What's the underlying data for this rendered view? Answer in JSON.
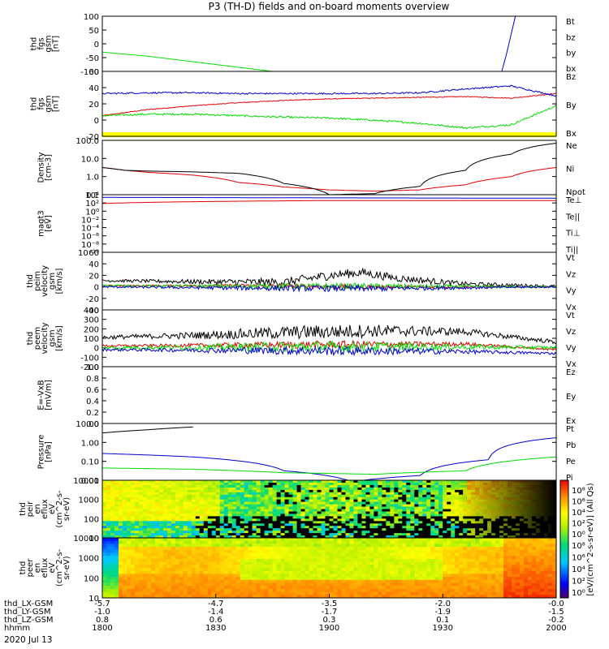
{
  "title": "P3 (TH-D) fields and on-board moments overview",
  "colors": {
    "black": "#000000",
    "red": "#e00000",
    "green": "#00dd00",
    "blue": "#0000cc",
    "yellow": "#ffff00"
  },
  "panels": [
    {
      "ylabel": [
        "thd",
        "fgs",
        "gsm",
        "[nT]"
      ],
      "ticks": [
        "100",
        "50",
        "0",
        "-50",
        "-100"
      ],
      "legend": [
        {
          "text": "Bt",
          "color": "#000000"
        },
        {
          "text": "bz",
          "color": "#e00000"
        },
        {
          "text": "by",
          "color": "#00bb00"
        },
        {
          "text": "bx",
          "color": "#0000cc"
        }
      ]
    },
    {
      "ylabel": [
        "thd",
        "fgs",
        "gsm",
        "[nT]"
      ],
      "ticks": [
        "60",
        "40",
        "20",
        "0",
        "-20"
      ],
      "legend": [
        {
          "text": "Bz",
          "color": "#e00000"
        },
        {
          "text": "By",
          "color": "#00bb00"
        },
        {
          "text": "Bx",
          "color": "#000000"
        }
      ]
    },
    {
      "ylabel": [
        "Density",
        "[cm-3]"
      ],
      "ticks": [
        "100.0",
        "10.0",
        "1.0",
        "0.1"
      ],
      "legend": [
        {
          "text": "Ne",
          "color": "#e00000"
        },
        {
          "text": "Ni",
          "color": "#000000"
        },
        {
          "text": "Npot",
          "color": "#0000cc"
        }
      ]
    },
    {
      "ylabel": [
        "magt3",
        "[eV]"
      ],
      "ticks": [
        "10⁴",
        "10²",
        "10⁰",
        "10⁻²",
        "10⁻⁴",
        "10⁻⁶",
        "10⁻⁸",
        "10⁻¹⁰"
      ],
      "legend": [
        {
          "text": "Te⊥",
          "color": "#e00000"
        },
        {
          "text": "Te||",
          "color": "#000000"
        },
        {
          "text": "Ti⊥",
          "color": "#0000cc"
        },
        {
          "text": "Ti||",
          "color": "#00bb00"
        }
      ]
    },
    {
      "ylabel": [
        "thd",
        "peim",
        "velocity",
        "gsm",
        "[km/s]"
      ],
      "ticks": [
        "60",
        "40",
        "20",
        "0",
        "-20",
        "-40"
      ],
      "legend": [
        {
          "text": "Vt",
          "color": "#000000"
        },
        {
          "text": "Vz",
          "color": "#e00000"
        },
        {
          "text": "Vy",
          "color": "#00bb00"
        },
        {
          "text": "Vx",
          "color": "#0000cc"
        }
      ]
    },
    {
      "ylabel": [
        "thd",
        "peem",
        "velocity",
        "gsm",
        "[km/s]"
      ],
      "ticks": [
        "400",
        "300",
        "200",
        "100",
        "0",
        "-100",
        "-200"
      ],
      "legend": [
        {
          "text": "Vt",
          "color": "#000000"
        },
        {
          "text": "Vz",
          "color": "#e00000"
        },
        {
          "text": "Vy",
          "color": "#00bb00"
        },
        {
          "text": "Vx",
          "color": "#0000cc"
        }
      ]
    },
    {
      "ylabel": [
        "E=-VxB",
        "[mV/m]"
      ],
      "ticks": [
        "1.0",
        "0.8",
        "0.6",
        "0.4",
        "0.2",
        "0.0"
      ],
      "legend": [
        {
          "text": "Ez",
          "color": "#e00000"
        },
        {
          "text": "Ey",
          "color": "#00bb00"
        },
        {
          "text": "Ex",
          "color": "#0000cc"
        }
      ]
    },
    {
      "ylabel": [
        "Pressure",
        "[nPa]"
      ],
      "ticks": [
        "10.00",
        "1.00",
        "0.10",
        "0.01"
      ],
      "legend": [
        {
          "text": "Pt",
          "color": "#000000"
        },
        {
          "text": "Pb",
          "color": "#e00000"
        },
        {
          "text": "Pe",
          "color": "#00bb00"
        },
        {
          "text": "Pi",
          "color": "#0000cc"
        }
      ]
    },
    {
      "ylabel": [
        "thd",
        "peir",
        "en",
        "eflux",
        "eV",
        "(cm^2-s-",
        "sr-eV)"
      ],
      "ticks": [
        "10000",
        "1000",
        "100",
        "10"
      ],
      "legend": []
    },
    {
      "ylabel": [
        "thd",
        "peer",
        "en",
        "eflux",
        "eV",
        "(cm^2-s-",
        "sr-eV)"
      ],
      "ticks": [
        "10000",
        "1000",
        "100",
        "10"
      ],
      "legend": []
    }
  ],
  "colorbar": {
    "label": "[eV/(cm^2-s-sr-eV)] (All Qs)",
    "upper_ticks": [
      "10⁸",
      "10⁶",
      "10⁴",
      "10²",
      "10⁰"
    ],
    "lower_ticks": [
      "10⁸",
      "10⁶",
      "10⁴",
      "10²",
      "10⁰"
    ]
  },
  "xaxis": {
    "rows": [
      {
        "label": "thd_LX-GSM",
        "values": [
          "-5.7",
          "-4.7",
          "-3.5",
          "-2.0",
          "-0.0"
        ]
      },
      {
        "label": "thd_LY-GSM",
        "values": [
          "-1.0",
          "-1.4",
          "-1.7",
          "-1.9",
          "-1.5"
        ]
      },
      {
        "label": "thd_LZ-GSM",
        "values": [
          "0.8",
          "0.6",
          "0.3",
          "0.1",
          "-0.2"
        ]
      },
      {
        "label": "hhmm",
        "values": [
          "1800",
          "1830",
          "1900",
          "1930",
          "2000"
        ]
      }
    ],
    "date": "2020 Jul 13"
  },
  "chart_data": {
    "type": "line",
    "title": "P3 (TH-D) fields and on-board moments overview",
    "x_hhmm": [
      "1800",
      "1830",
      "1900",
      "1930",
      "2000"
    ],
    "panels": [
      {
        "ylabel": "thd fgs gsm [nT]",
        "ylim": [
          -100,
          100
        ],
        "series": [
          {
            "name": "by",
            "x": [
              0,
              10,
              20,
              30,
              40
            ],
            "y": [
              -30,
              -45,
              -65,
              -85,
              -105
            ]
          },
          {
            "name": "bx",
            "x": [
              88,
              89,
              90,
              91
            ],
            "y": [
              -100,
              -40,
              30,
              100
            ]
          }
        ]
      },
      {
        "ylabel": "thd fgs gsm [nT]",
        "ylim": [
          -25,
          60
        ],
        "series": [
          {
            "name": "Bz",
            "x": [
              0,
              10,
              20,
              30,
              40,
              50,
              60,
              70,
              80,
              90,
              100
            ],
            "y": [
              2,
              10,
              15,
              19,
              22,
              24,
              25,
              26,
              27,
              25,
              31
            ]
          },
          {
            "name": "By",
            "x": [
              0,
              10,
              20,
              30,
              40,
              50,
              60,
              70,
              80,
              90,
              100
            ],
            "y": [
              2,
              4,
              4,
              2,
              0,
              -1,
              -4,
              -8,
              -14,
              -10,
              15
            ]
          },
          {
            "name": "Bx",
            "x": [
              0,
              10,
              20,
              30,
              40,
              50,
              60,
              70,
              80,
              90,
              100
            ],
            "y": [
              31,
              32,
              32,
              31,
              31,
              31,
              31,
              32,
              37,
              41,
              28
            ]
          }
        ]
      },
      {
        "ylabel": "Density [cm-3]",
        "scale": "log",
        "ylim": [
          0.06,
          150
        ],
        "series": [
          {
            "name": "Ne",
            "x": [
              0,
              5,
              10,
              20,
              30,
              40,
              50,
              60,
              70,
              80,
              90,
              100
            ],
            "y": [
              3,
              2,
              1.5,
              1,
              0.35,
              0.18,
              0.12,
              0.1,
              0.12,
              0.25,
              0.8,
              3
            ]
          },
          {
            "name": "Ni",
            "x": [
              0,
              5,
              10,
              20,
              30,
              40,
              50,
              60,
              70,
              80,
              90,
              100
            ],
            "y": [
              3,
              2,
              1.8,
              1.6,
              1.3,
              0.3,
              0.06,
              0.07,
              0.2,
              2,
              20,
              100
            ]
          }
        ]
      },
      {
        "ylabel": "magt3 [eV]",
        "scale": "log",
        "series": [
          {
            "name": "Te⊥",
            "x": [
              0,
              50,
              100
            ],
            "y": [
              500,
              3000,
              3000
            ]
          },
          {
            "name": "Ti⊥",
            "x": [
              0,
              50,
              100
            ],
            "y": [
              20000,
              15000,
              12000
            ]
          }
        ]
      },
      {
        "ylabel": "thd peim velocity gsm [km/s]",
        "ylim": [
          -40,
          60
        ],
        "series": [
          {
            "name": "Vt",
            "x": [
              0,
              20,
              40,
              50,
              57,
              65,
              80,
              100
            ],
            "y": [
              11,
              9,
              8,
              20,
              25,
              15,
              5,
              1
            ]
          },
          {
            "name": "Vz",
            "x": [
              0,
              30,
              60,
              100
            ],
            "y": [
              2,
              2,
              0,
              0
            ]
          },
          {
            "name": "Vy",
            "x": [
              0,
              30,
              60,
              100
            ],
            "y": [
              2,
              1,
              1,
              0
            ]
          },
          {
            "name": "Vx",
            "x": [
              0,
              30,
              60,
              100
            ],
            "y": [
              0,
              -2,
              -3,
              0
            ]
          }
        ]
      },
      {
        "ylabel": "thd peem velocity gsm [km/s]",
        "ylim": [
          -200,
          400
        ],
        "series": [
          {
            "name": "Vt",
            "x": [
              0,
              20,
              40,
              60,
              80,
              100
            ],
            "y": [
              110,
              130,
              160,
              180,
              170,
              60
            ]
          },
          {
            "name": "Vz",
            "x": [
              0,
              40,
              80,
              100
            ],
            "y": [
              20,
              30,
              40,
              -20
            ]
          },
          {
            "name": "Vy",
            "x": [
              0,
              40,
              80,
              100
            ],
            "y": [
              0,
              10,
              10,
              0
            ]
          },
          {
            "name": "Vx",
            "x": [
              0,
              40,
              80,
              100
            ],
            "y": [
              -20,
              -30,
              -40,
              -60
            ]
          }
        ]
      },
      {
        "ylabel": "E=-VxB [mV/m]",
        "ylim": [
          0,
          1
        ],
        "series": []
      },
      {
        "ylabel": "Pressure [nPa]",
        "scale": "log",
        "ylim": [
          0.005,
          20
        ],
        "series": [
          {
            "name": "Pt",
            "x": [
              0,
              10,
              20
            ],
            "y": [
              5,
              8,
              12
            ]
          },
          {
            "name": "Pi",
            "x": [
              0,
              20,
              40,
              55,
              70,
              85,
              100
            ],
            "y": [
              0.25,
              0.15,
              0.02,
              0.004,
              0.01,
              0.1,
              2.5
            ]
          },
          {
            "name": "Pe",
            "x": [
              0,
              20,
              40,
              60,
              80,
              100
            ],
            "y": [
              0.03,
              0.025,
              0.015,
              0.012,
              0.02,
              0.15
            ]
          }
        ]
      }
    ]
  }
}
